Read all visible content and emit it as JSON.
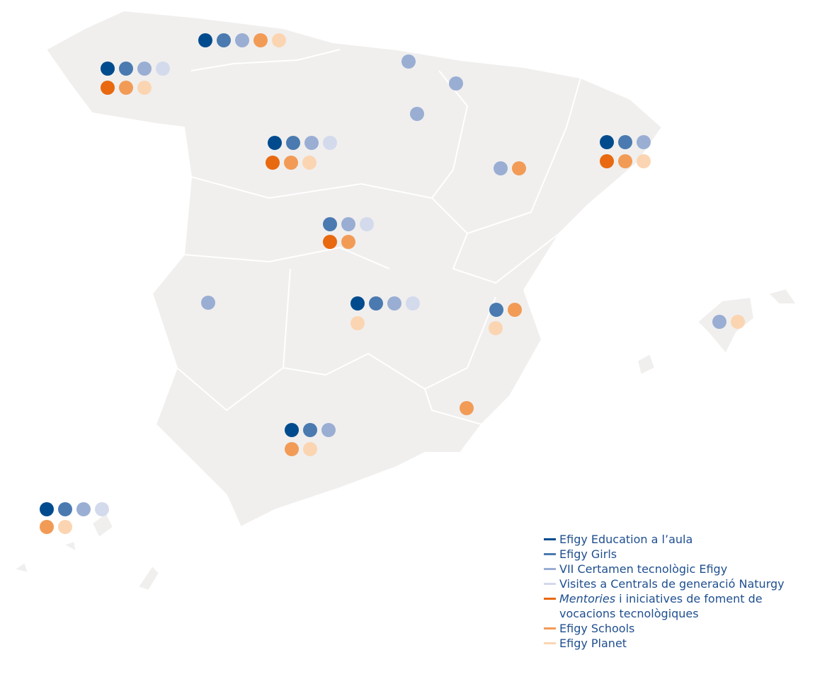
{
  "legend": [
    {
      "label": "Efigy Education a l’aula",
      "color": "#004b8d"
    },
    {
      "label": "Efigy Girls",
      "color": "#4a7ab0"
    },
    {
      "label": "VII Certamen tecnològic Efigy",
      "color": "#9aaed3"
    },
    {
      "label": "Visites a Centrals de generació Naturgy",
      "color": "#d3daec"
    },
    {
      "emphasis": "Mentories",
      "label": " i iniciatives de foment de vocacions tecnològiques",
      "color": "#e8690f"
    },
    {
      "label": "Efigy Schools",
      "color": "#f29b56"
    },
    {
      "label": "Efigy Planet",
      "color": "#fbd5b2"
    }
  ],
  "dot_groups": [
    [
      [
        0,
        1,
        2,
        5,
        6
      ]
    ],
    [
      [
        0,
        1,
        2,
        3
      ],
      [
        4,
        5,
        6
      ]
    ],
    [
      [
        2
      ]
    ],
    [
      [
        2
      ]
    ],
    [
      [
        2
      ]
    ],
    [
      [
        0,
        1,
        2,
        3
      ],
      [
        4,
        5,
        6
      ]
    ],
    [
      [
        2,
        5
      ]
    ],
    [
      [
        0,
        1,
        2
      ],
      [
        4,
        5,
        6
      ]
    ],
    [
      [
        1,
        2,
        3
      ],
      [
        4,
        5
      ]
    ],
    [
      [
        2
      ]
    ],
    [
      [
        0,
        1,
        2,
        3
      ],
      [
        6
      ]
    ],
    [
      [
        1,
        5
      ],
      [
        6
      ]
    ],
    [
      [
        2,
        6
      ]
    ],
    [
      [
        5
      ]
    ],
    [
      [
        0,
        1,
        2
      ],
      [
        5,
        6
      ]
    ],
    [
      [
        0,
        1,
        2,
        3
      ],
      [
        5,
        6
      ]
    ]
  ]
}
